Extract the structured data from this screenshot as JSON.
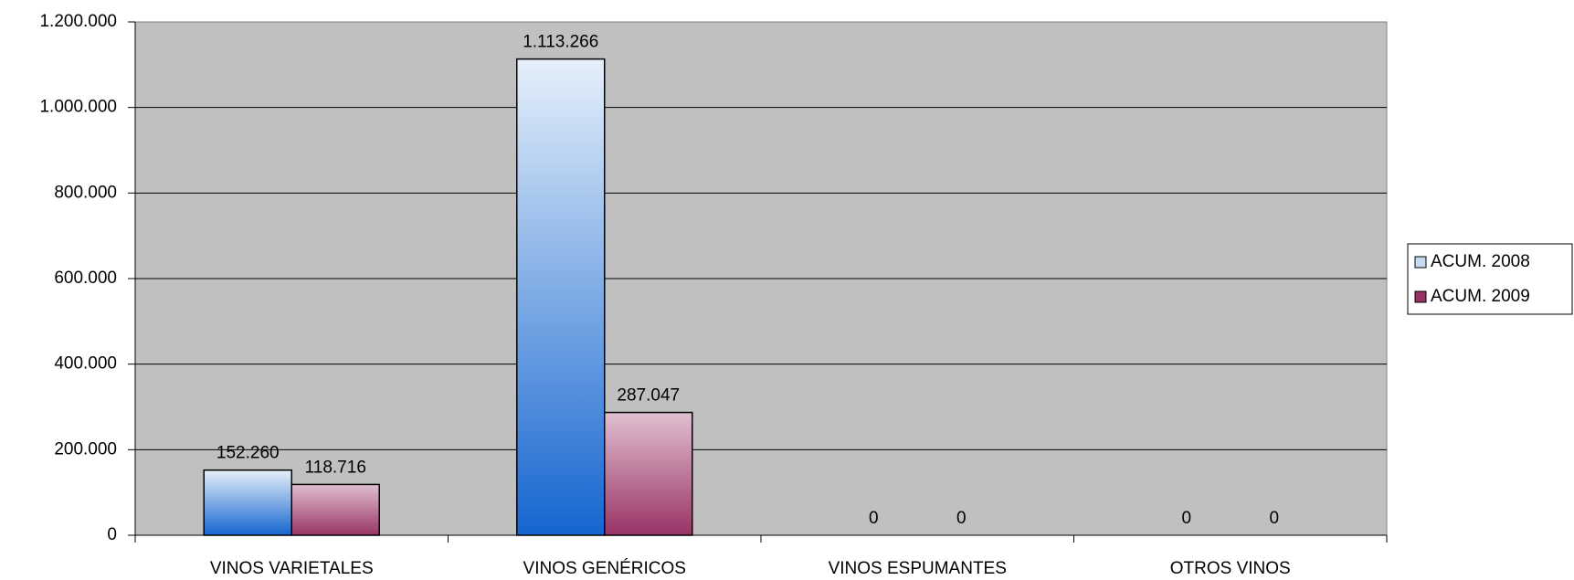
{
  "chart_data": {
    "type": "bar",
    "categories": [
      "VINOS VARIETALES",
      "VINOS GENÉRICOS",
      "VINOS ESPUMANTES",
      "OTROS VINOS"
    ],
    "series": [
      {
        "name": "ACUM. 2008",
        "color": "#1565d0",
        "values": [
          152260,
          1113266,
          0,
          0
        ],
        "value_labels": [
          "152.260",
          "1.113.266",
          "0",
          "0"
        ]
      },
      {
        "name": "ACUM. 2009",
        "color": "#993366",
        "values": [
          118716,
          287047,
          0,
          0
        ],
        "value_labels": [
          "118.716",
          "287.047",
          "0",
          "0"
        ]
      }
    ],
    "ylim": [
      0,
      1200000
    ],
    "yticks": [
      0,
      {
        "value": 200000,
        "label": "200.000"
      },
      {
        "value": 400000,
        "label": "400.000"
      },
      {
        "value": 600000,
        "label": "600.000"
      },
      {
        "value": 800000,
        "label": "800.000"
      },
      {
        "value": 1000000,
        "label": "1.000.000"
      },
      {
        "value": 1200000,
        "label": "1.200.000"
      }
    ],
    "grid": true,
    "legend": "right"
  }
}
